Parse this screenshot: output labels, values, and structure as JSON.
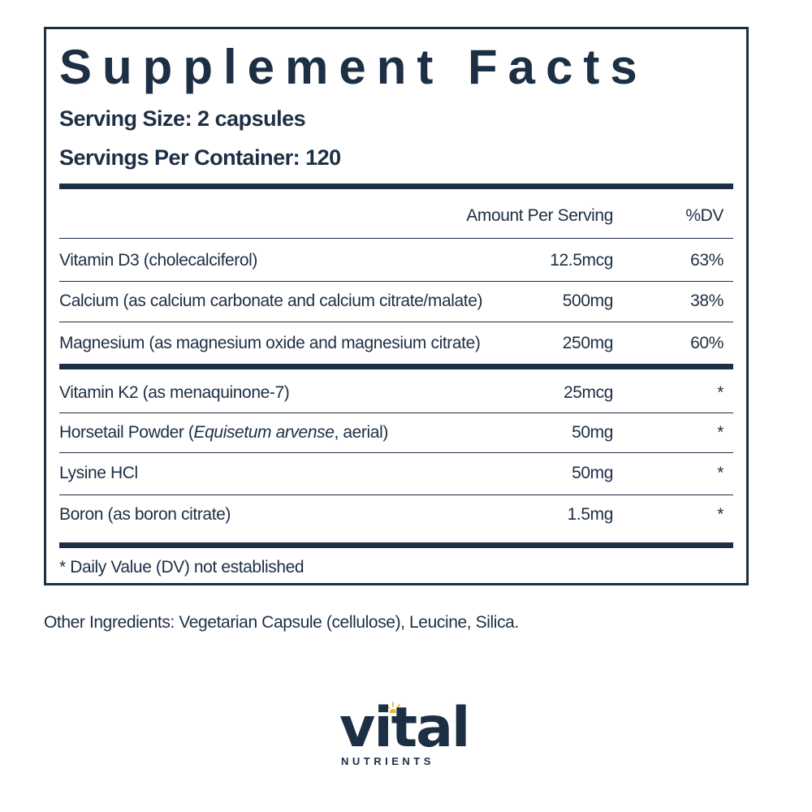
{
  "panel": {
    "title": "Supplement Facts",
    "serving_size": "Serving Size: 2 capsules",
    "servings_per_container": "Servings Per Container: 120",
    "header": {
      "amount": "Amount Per Serving",
      "dv": "%DV"
    },
    "rows": [
      {
        "name": "Vitamin D3 (cholecalciferol)",
        "amount": "12.5mcg",
        "dv": "63%"
      },
      {
        "name": "Calcium (as calcium carbonate and calcium citrate/malate)",
        "amount": "500mg",
        "dv": "38%"
      },
      {
        "name": "Magnesium (as magnesium oxide and magnesium citrate)",
        "amount": "250mg",
        "dv": "60%"
      },
      {
        "name": "Vitamin K2 (as menaquinone-7)",
        "amount": "25mcg",
        "dv": "*"
      },
      {
        "name_prefix": "Horsetail Powder (",
        "name_italic": "Equisetum arvense",
        "name_suffix": ", aerial)",
        "amount": "50mg",
        "dv": "*"
      },
      {
        "name": "Lysine HCl",
        "amount": "50mg",
        "dv": "*"
      },
      {
        "name": "Boron (as boron citrate)",
        "amount": "1.5mg",
        "dv": "*"
      }
    ],
    "footnote": "* Daily Value (DV) not established"
  },
  "other_ingredients": "Other Ingredients: Vegetarian Capsule (cellulose), Leucine, Silica.",
  "logo": {
    "word": "vital",
    "subword": "NUTRIENTS",
    "icon": "sun-icon"
  },
  "colors": {
    "text": "#1d2f44",
    "accent": "#e8b830"
  }
}
